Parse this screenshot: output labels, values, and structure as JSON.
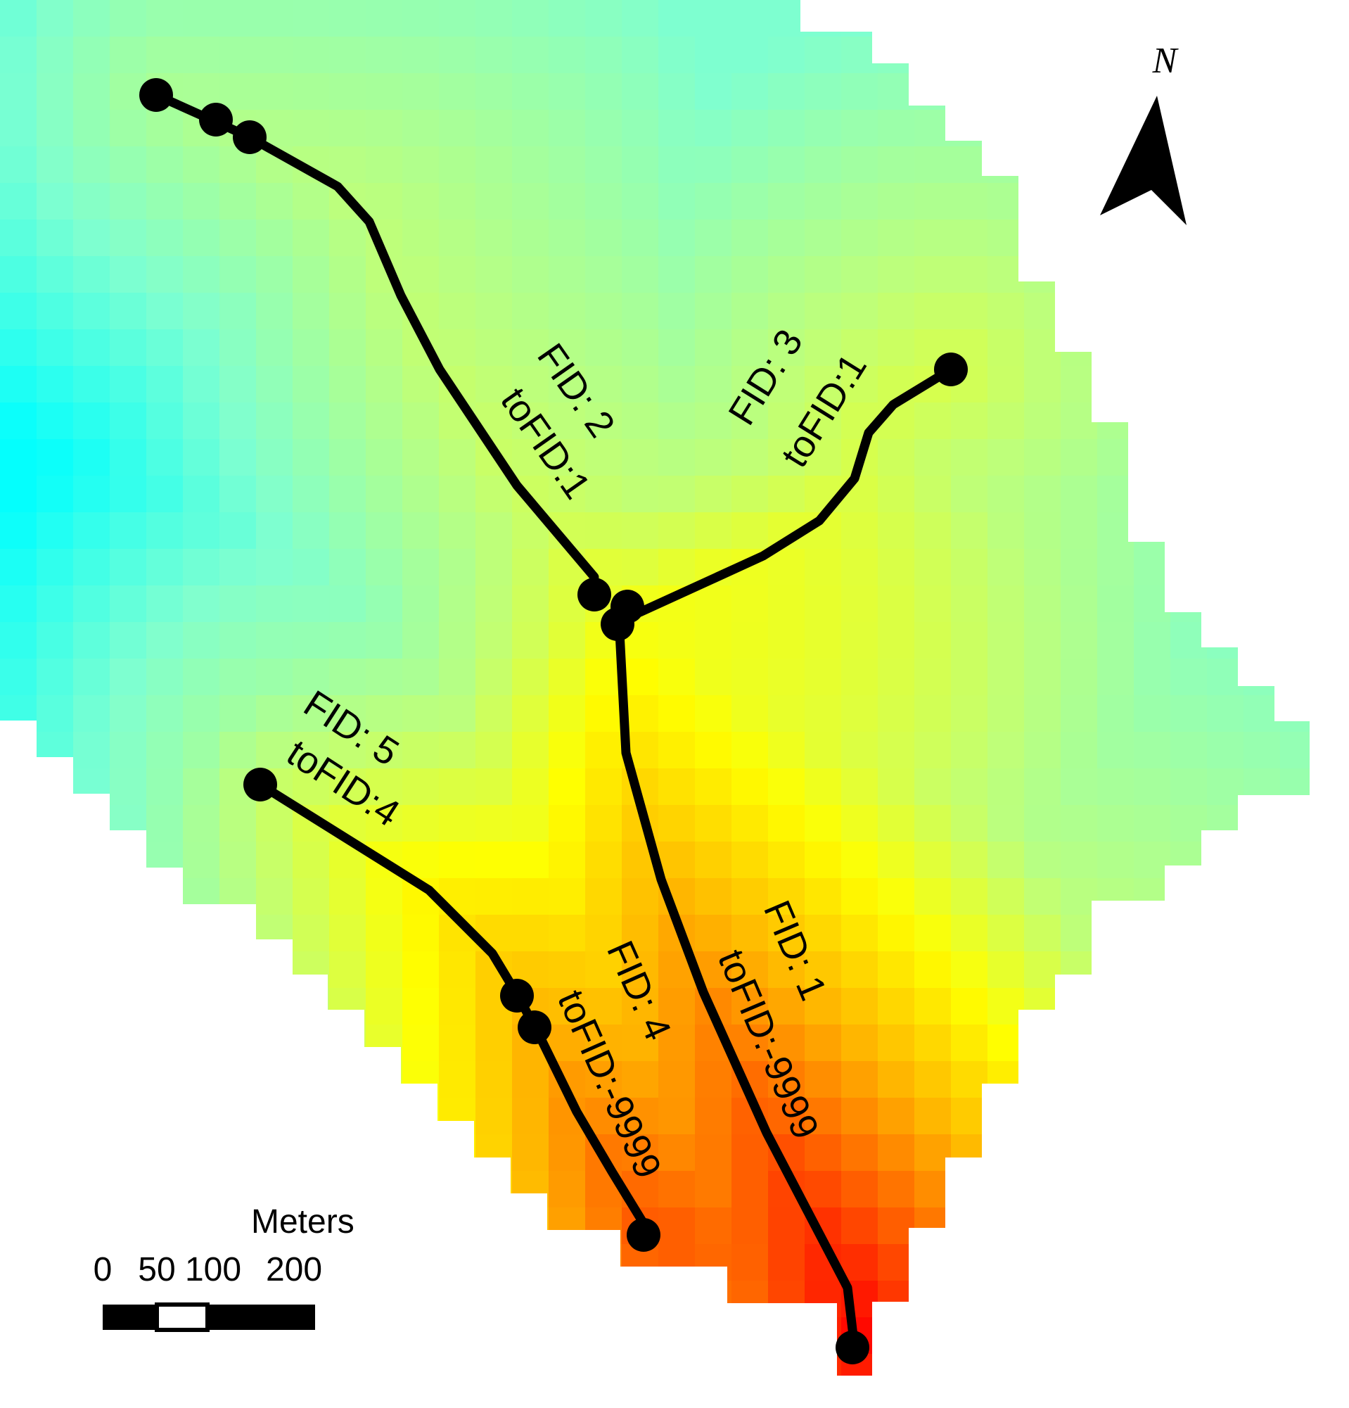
{
  "map": {
    "colors": {
      "background": "#ffffff",
      "stream": "#000000",
      "label": "#000000",
      "ramp": [
        "#00ffff",
        "#7fffd0",
        "#bfff78",
        "#ffff00",
        "#ffb400",
        "#ff5a00",
        "#ff0000"
      ]
    },
    "north_arrow": {
      "label": "N",
      "icon": "north-arrow-icon"
    },
    "scale_bar": {
      "unit_label": "Meters",
      "ticks": [
        {
          "label": "0",
          "value": 0
        },
        {
          "label": "50",
          "value": 50
        },
        {
          "label": "100",
          "value": 100
        },
        {
          "label": "200",
          "value": 200
        }
      ]
    },
    "streams": [
      {
        "fid_text": "FID: 1",
        "to_text": "toFID:-9999"
      },
      {
        "fid_text": "FID: 2",
        "to_text": "toFID:1"
      },
      {
        "fid_text": "FID: 3",
        "to_text": "toFID:1"
      },
      {
        "fid_text": "FID: 4",
        "to_text": "toFID:-9999"
      },
      {
        "fid_text": "FID: 5",
        "to_text": "toFID:4"
      }
    ]
  }
}
